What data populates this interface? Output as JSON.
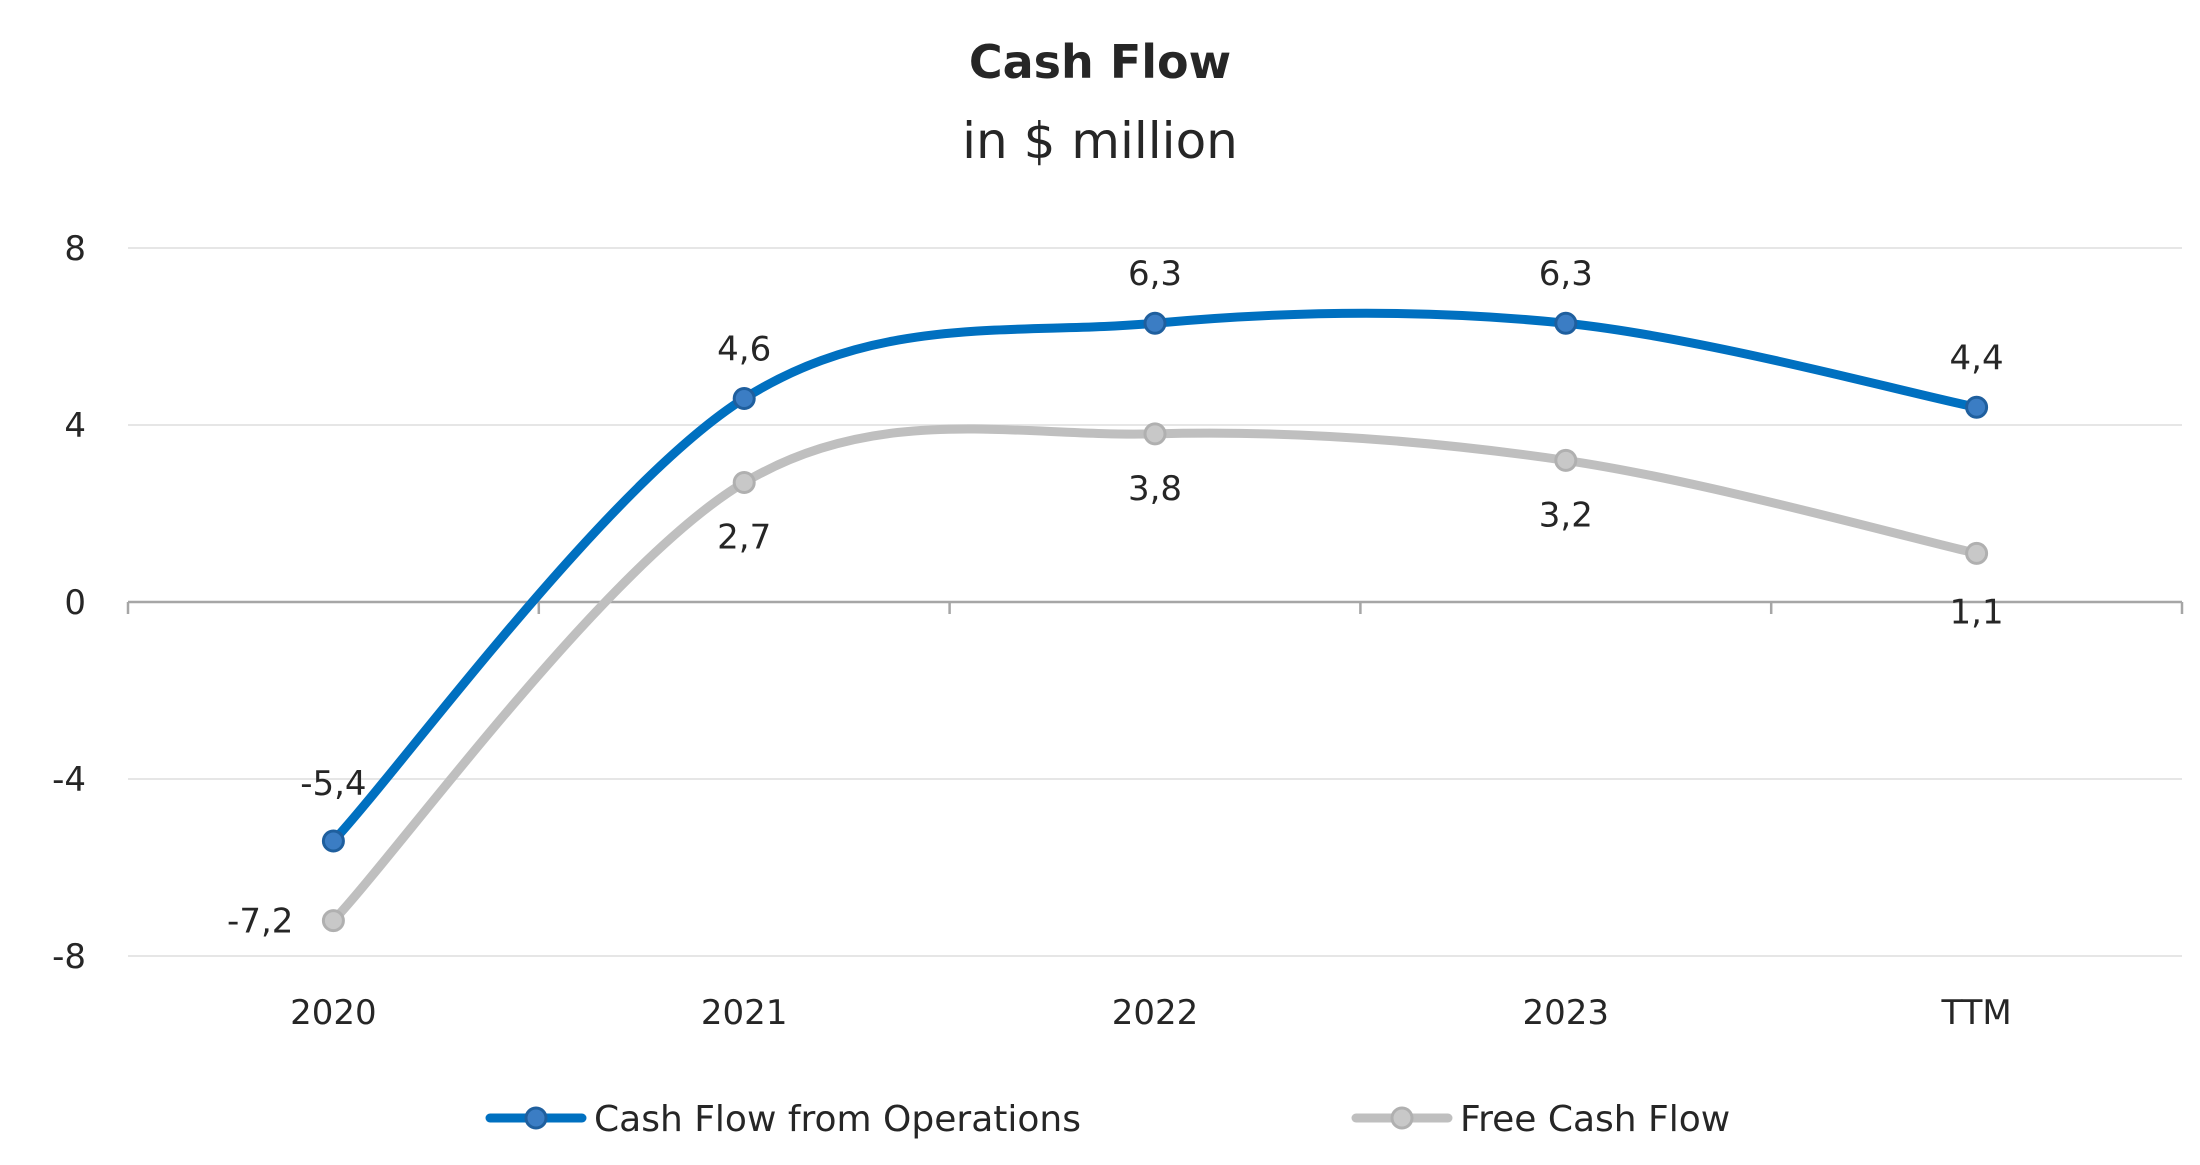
{
  "chart_data": {
    "type": "line",
    "title": "Cash Flow",
    "subtitle": "in $ million",
    "categories": [
      "2020",
      "2021",
      "2022",
      "2023",
      "TTM"
    ],
    "ylim": [
      -8,
      8
    ],
    "yticks": [
      8,
      4,
      0,
      -4,
      -8
    ],
    "grid": true,
    "smooth": true,
    "legend_position": "bottom",
    "series": [
      {
        "name": "Cash Flow from Operations",
        "values": [
          -5.4,
          4.6,
          6.3,
          6.3,
          4.4
        ],
        "labels": [
          "-5,4",
          "4,6",
          "6,3",
          "6,3",
          "4,4"
        ],
        "color": "#0070C0"
      },
      {
        "name": "Free Cash Flow",
        "values": [
          -7.2,
          2.7,
          3.8,
          3.2,
          1.1
        ],
        "labels": [
          "-7,2",
          "2,7",
          "3,8",
          "3,2",
          "1,1"
        ],
        "color": "#BFBFBF"
      }
    ]
  }
}
